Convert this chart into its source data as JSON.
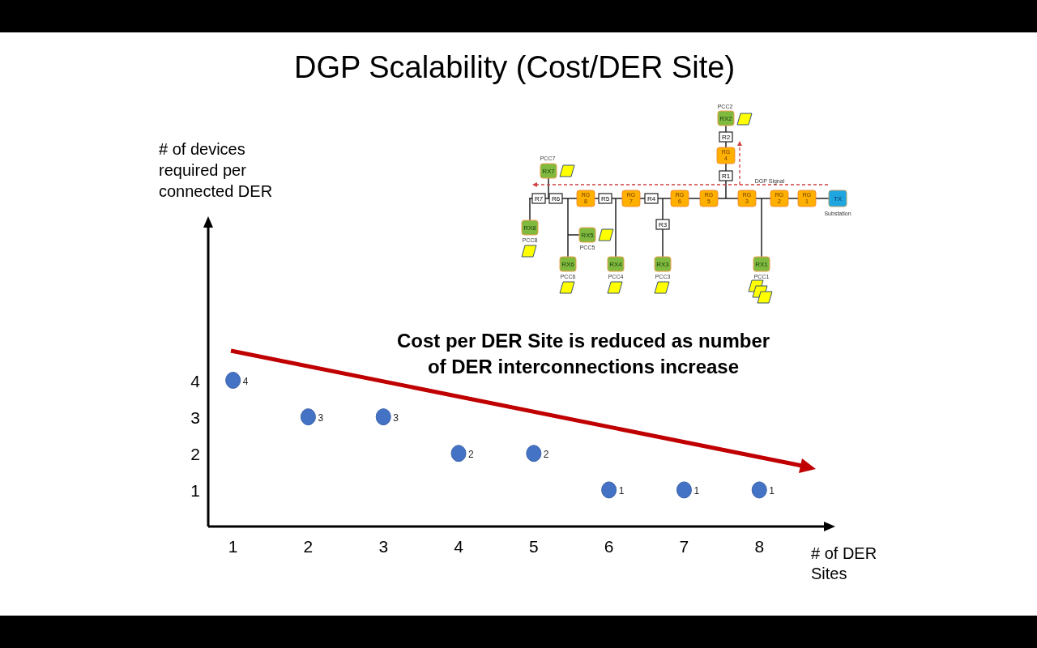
{
  "chart_data": {
    "type": "scatter",
    "title": "DGP Scalability (Cost/DER Site)",
    "xlabel": "# of DER Sites",
    "ylabel": "# of devices required per connected DER",
    "x": [
      1,
      2,
      3,
      4,
      5,
      6,
      7,
      8
    ],
    "series": [
      {
        "color": "#4472c4",
        "values": [
          4,
          3,
          3,
          2,
          2,
          1,
          1,
          1
        ]
      }
    ],
    "xlim": [
      0.67,
      8.87
    ],
    "xticks": [
      1,
      2,
      3,
      4,
      5,
      6,
      7,
      8
    ],
    "ylim": [
      0,
      8.2
    ],
    "yticks": [
      1,
      2,
      3,
      4
    ],
    "marker": "circle",
    "data_labels": true,
    "grid": false,
    "annotations": [
      "Cost per DER Site is reduced as number of DER interconnections increase",
      "PCC2",
      "RX2",
      "R2",
      "RG 4",
      "R1",
      "PCC7",
      "RX7",
      "DGP Signal",
      "R7",
      "R6",
      "RG 8",
      "R5",
      "RG 7",
      "R4",
      "RG 6",
      "RG 5",
      "RG 3",
      "RG 2",
      "RG 1",
      "TX",
      "Substation",
      "RX8",
      "PCC8",
      "RX5",
      "PCC5",
      "RX6",
      "PCC6",
      "RX4",
      "PCC4",
      "R3",
      "RX3",
      "PCC3",
      "RX1",
      "PCC1"
    ]
  }
}
